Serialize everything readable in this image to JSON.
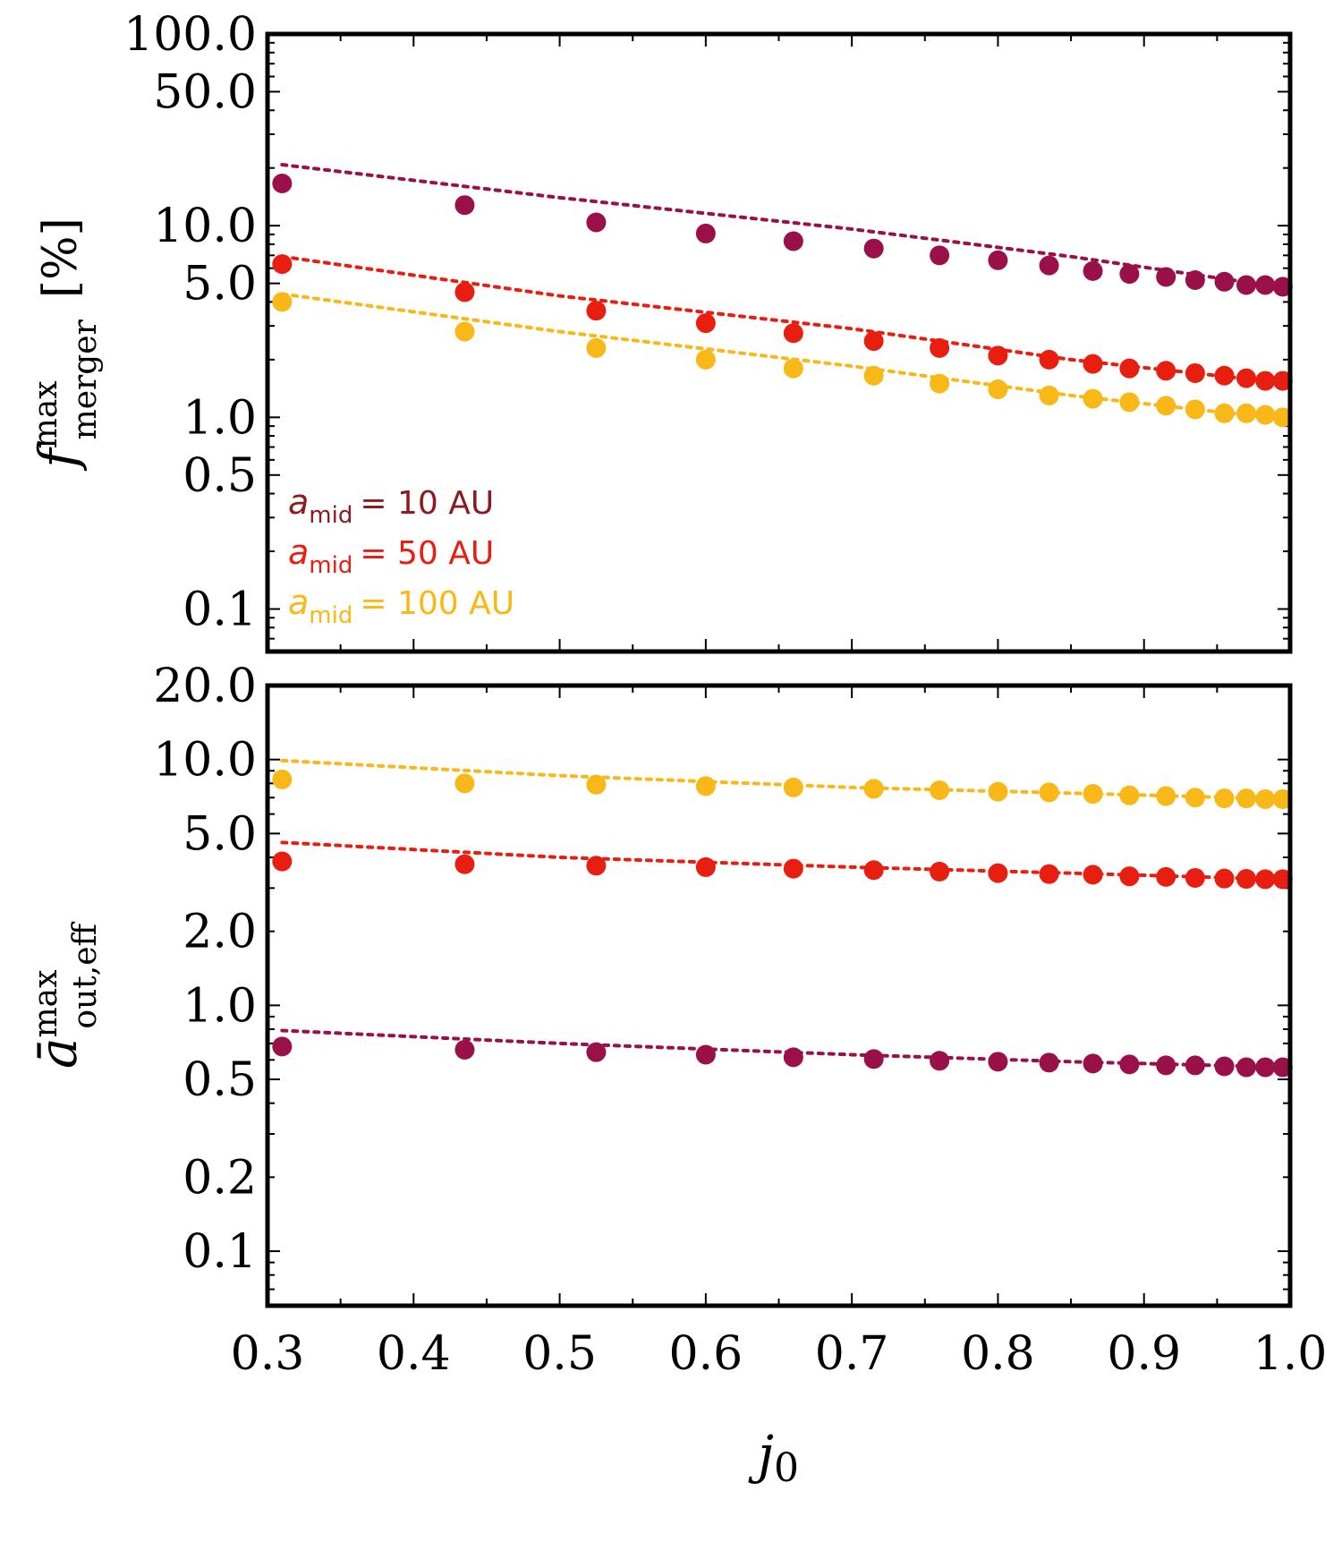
{
  "chart_data": [
    {
      "type": "scatter",
      "panel": "top",
      "scale": "log",
      "ylabel": {
        "symbol": "f",
        "sup": "max",
        "sub": "merger",
        "unit": "[%]"
      },
      "ylim": [
        0.06,
        100
      ],
      "yticks": [
        "100.0",
        "50.0",
        "10.0",
        "5.0",
        "1.0",
        "0.5",
        "0.1"
      ],
      "ytick_values": [
        100,
        50,
        10,
        5,
        1,
        0.5,
        0.1
      ],
      "x": [
        0.31,
        0.435,
        0.525,
        0.6,
        0.66,
        0.715,
        0.76,
        0.8,
        0.835,
        0.865,
        0.89,
        0.915,
        0.935,
        0.955,
        0.97,
        0.983,
        0.995
      ],
      "series": [
        {
          "name": "a_mid = 10 AU",
          "color": "#9a1048",
          "values": [
            16.6,
            12.8,
            10.4,
            9.1,
            8.3,
            7.6,
            7.0,
            6.6,
            6.2,
            5.8,
            5.6,
            5.4,
            5.2,
            5.1,
            4.9,
            4.9,
            4.8
          ],
          "fit": [
            [
              0.31,
              20.8
            ],
            [
              0.5,
              14.0
            ],
            [
              0.7,
              9.6
            ],
            [
              0.85,
              6.9
            ],
            [
              1.0,
              4.7
            ]
          ]
        },
        {
          "name": "a_mid = 50 AU",
          "color": "#e81e10",
          "values": [
            6.3,
            4.5,
            3.6,
            3.1,
            2.75,
            2.5,
            2.3,
            2.1,
            2.0,
            1.9,
            1.8,
            1.75,
            1.7,
            1.65,
            1.6,
            1.55,
            1.55
          ],
          "fit": [
            [
              0.31,
              6.9
            ],
            [
              0.5,
              4.3
            ],
            [
              0.7,
              2.9
            ],
            [
              0.85,
              2.0
            ],
            [
              1.0,
              1.5
            ]
          ]
        },
        {
          "name": "a_mid = 100 AU",
          "color": "#f8b818",
          "values": [
            4.0,
            2.8,
            2.3,
            2.0,
            1.8,
            1.65,
            1.5,
            1.4,
            1.3,
            1.25,
            1.2,
            1.15,
            1.1,
            1.05,
            1.05,
            1.03,
            1.0
          ],
          "fit": [
            [
              0.31,
              4.4
            ],
            [
              0.5,
              2.8
            ],
            [
              0.7,
              1.85
            ],
            [
              0.85,
              1.3
            ],
            [
              1.0,
              0.97
            ]
          ]
        }
      ],
      "legend": {
        "placement": "bottom-left",
        "entries": [
          {
            "var": "a",
            "sub": "mid",
            "text": "= 10 AU",
            "color": "#8c1a1f"
          },
          {
            "var": "a",
            "sub": "mid",
            "text": "= 50 AU",
            "color": "#e81e10"
          },
          {
            "var": "a",
            "sub": "mid",
            "text": "= 100 AU",
            "color": "#f8b818"
          }
        ]
      }
    },
    {
      "type": "scatter",
      "panel": "bottom",
      "scale": "log",
      "ylabel": {
        "symbol": "ā",
        "sup": "max",
        "sub": "out,eff"
      },
      "ylim": [
        0.06,
        20
      ],
      "yticks": [
        "20.0",
        "10.0",
        "5.0",
        "2.0",
        "1.0",
        "0.5",
        "0.2",
        "0.1"
      ],
      "ytick_values": [
        20,
        10,
        5,
        2,
        1,
        0.5,
        0.2,
        0.1
      ],
      "x": [
        0.31,
        0.435,
        0.525,
        0.6,
        0.66,
        0.715,
        0.76,
        0.8,
        0.835,
        0.865,
        0.89,
        0.915,
        0.935,
        0.955,
        0.97,
        0.983,
        0.995
      ],
      "series": [
        {
          "name": "a_mid = 100 AU",
          "color": "#f8b818",
          "values": [
            8.3,
            8.0,
            7.9,
            7.8,
            7.7,
            7.6,
            7.5,
            7.4,
            7.35,
            7.25,
            7.15,
            7.1,
            7.0,
            6.95,
            6.95,
            6.9,
            6.9
          ],
          "fit": [
            [
              0.31,
              9.9
            ],
            [
              0.5,
              8.6
            ],
            [
              0.7,
              7.7
            ],
            [
              0.85,
              7.3
            ],
            [
              1.0,
              6.9
            ]
          ]
        },
        {
          "name": "a_mid = 50 AU",
          "color": "#e81e10",
          "values": [
            3.85,
            3.75,
            3.7,
            3.65,
            3.6,
            3.55,
            3.5,
            3.45,
            3.42,
            3.4,
            3.35,
            3.33,
            3.3,
            3.28,
            3.27,
            3.26,
            3.26
          ],
          "fit": [
            [
              0.31,
              4.6
            ],
            [
              0.5,
              4.0
            ],
            [
              0.7,
              3.65
            ],
            [
              0.85,
              3.45
            ],
            [
              1.0,
              3.25
            ]
          ]
        },
        {
          "name": "a_mid = 10 AU",
          "color": "#9a1048",
          "values": [
            0.68,
            0.66,
            0.645,
            0.63,
            0.615,
            0.605,
            0.595,
            0.59,
            0.585,
            0.58,
            0.575,
            0.57,
            0.57,
            0.565,
            0.56,
            0.56,
            0.56
          ],
          "fit": [
            [
              0.31,
              0.79
            ],
            [
              0.5,
              0.7
            ],
            [
              0.7,
              0.63
            ],
            [
              0.85,
              0.59
            ],
            [
              1.0,
              0.56
            ]
          ]
        }
      ]
    }
  ],
  "x_axis": {
    "label_symbol": "j",
    "label_sub": "0",
    "xlim": [
      0.3,
      1.0
    ],
    "ticks": [
      "0.3",
      "0.4",
      "0.5",
      "0.6",
      "0.7",
      "0.8",
      "0.9",
      "1.0"
    ],
    "tick_values": [
      0.3,
      0.4,
      0.5,
      0.6,
      0.7,
      0.8,
      0.9,
      1.0
    ]
  }
}
